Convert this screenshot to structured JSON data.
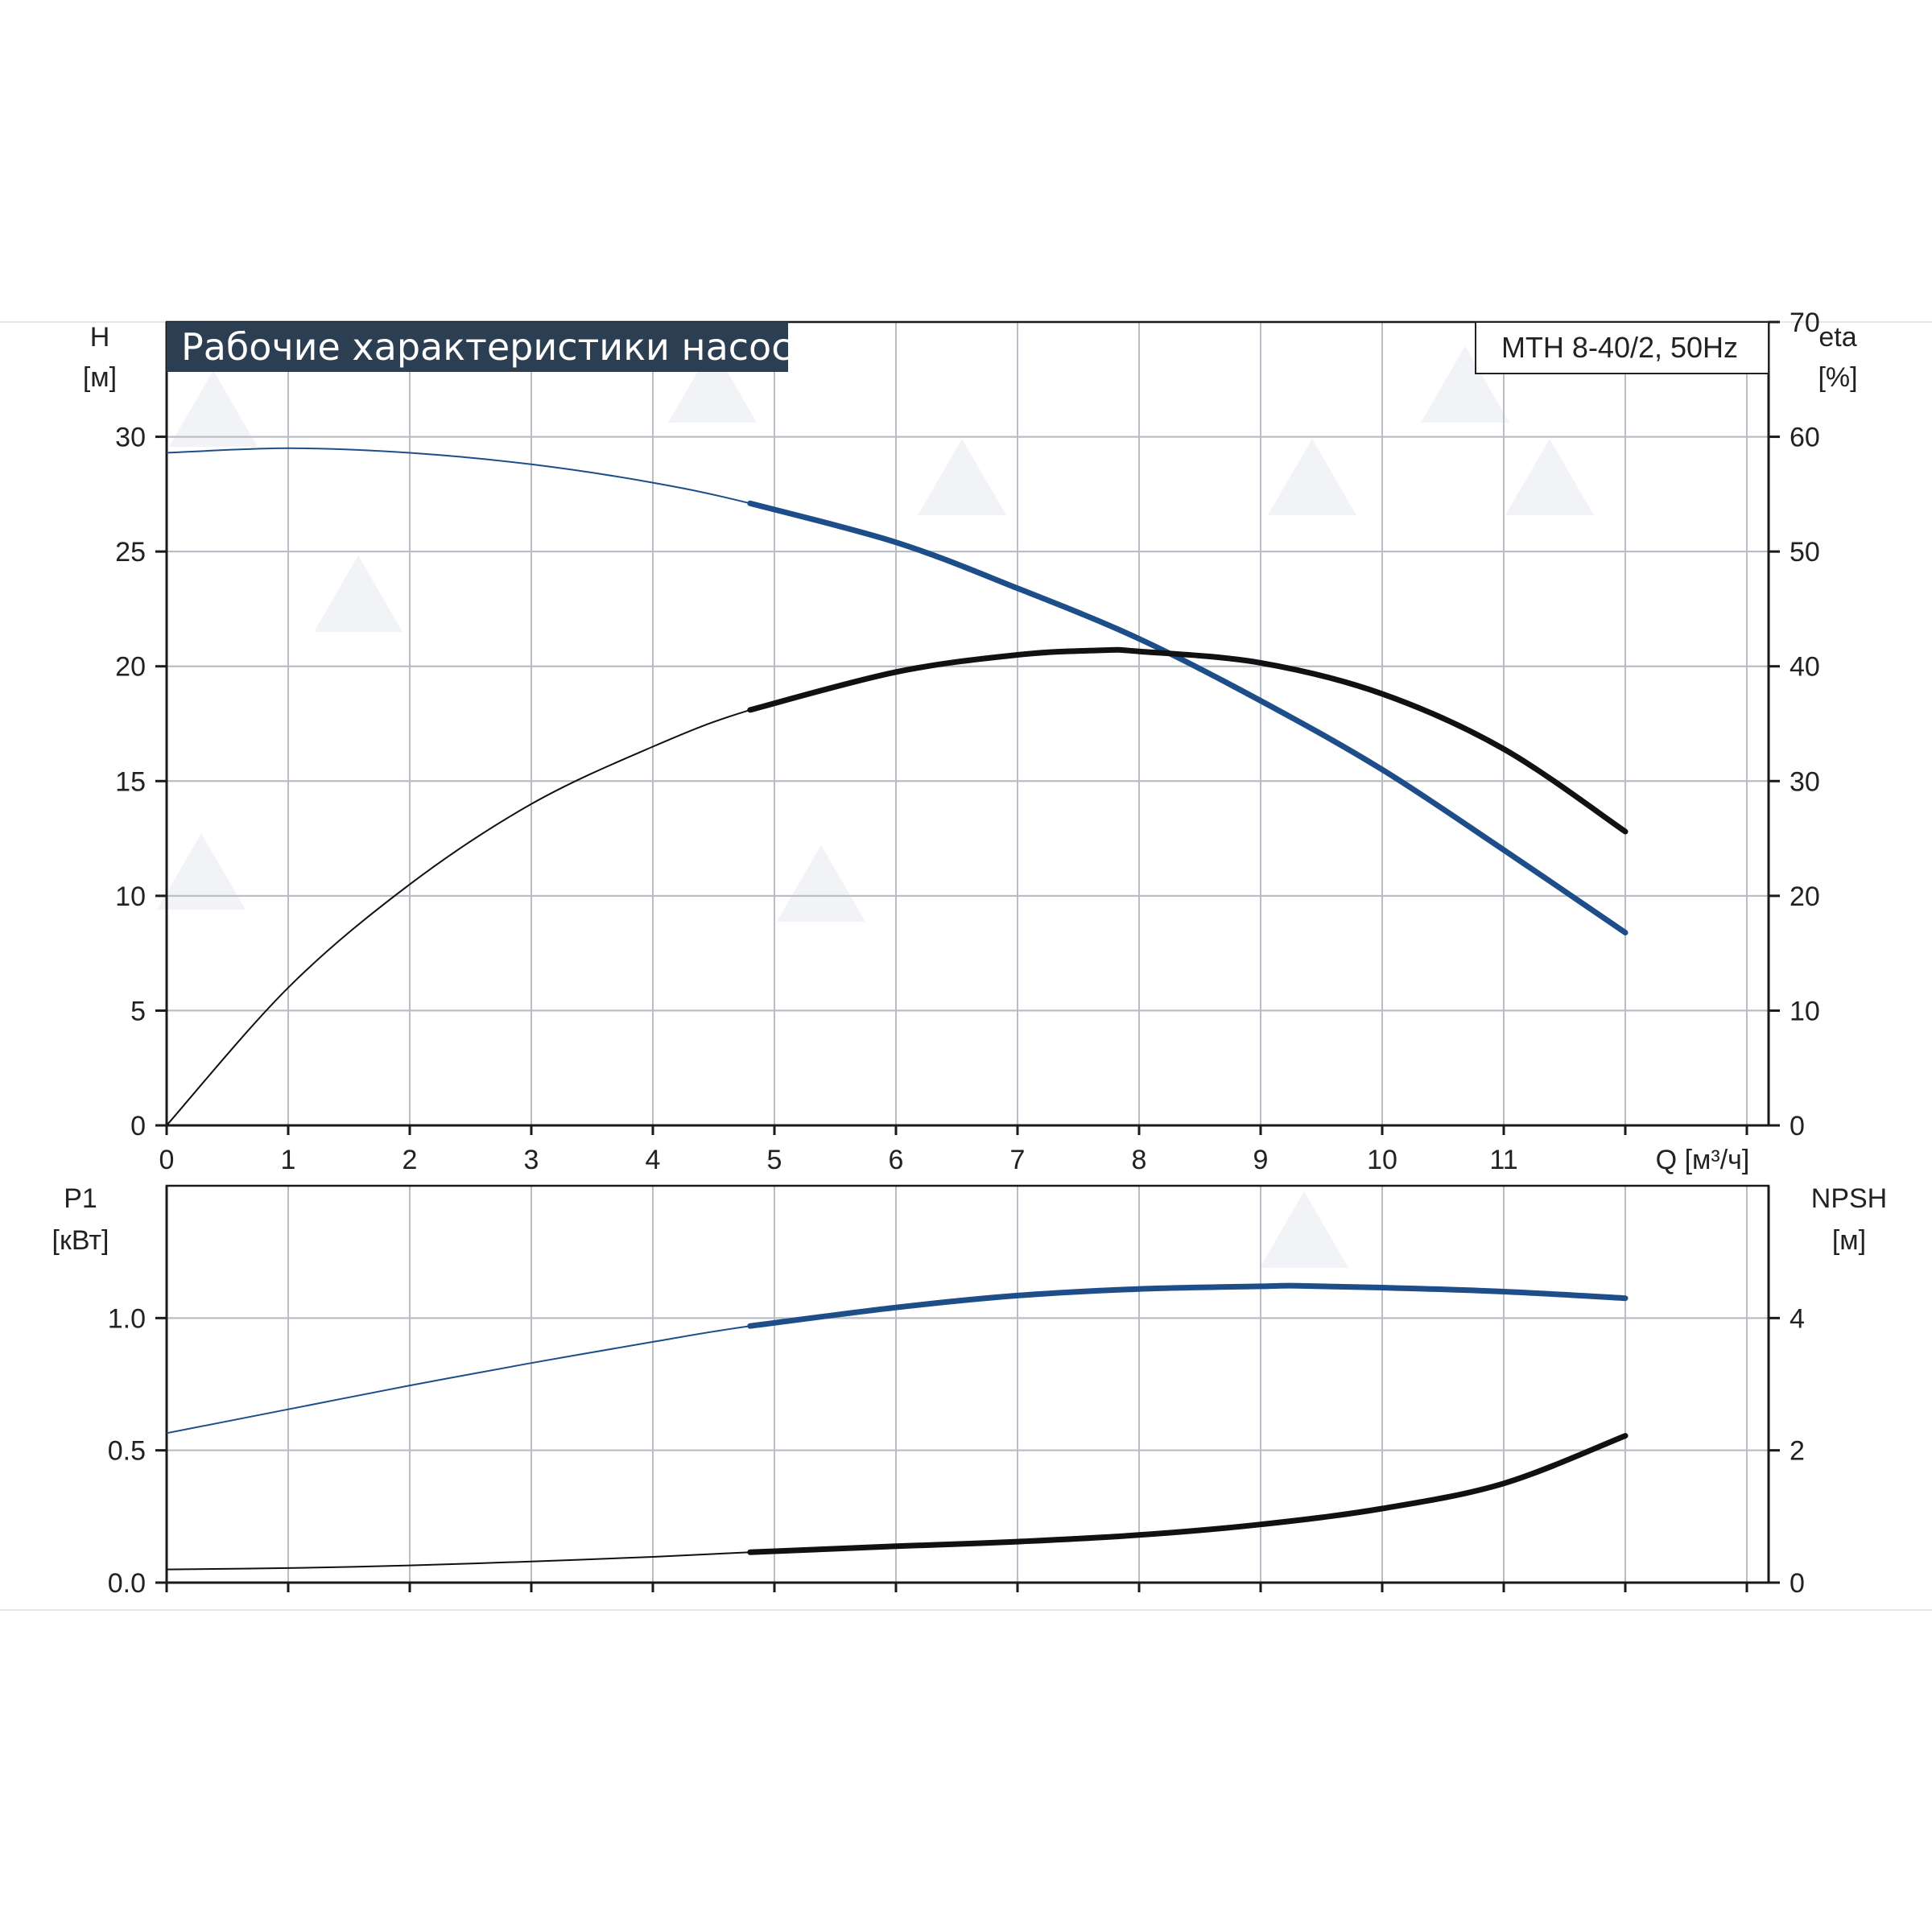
{
  "header": {
    "title": "Рабочие характеристики насоса",
    "model": "MTH 8-40/2, 50Hz"
  },
  "colors": {
    "title_bg": "#2b3e52",
    "curve_blue": "#1d4e89",
    "curve_black": "#111111",
    "grid": "#b9bec6",
    "watermark": "#f1f3f6"
  },
  "chart_data": [
    {
      "type": "line",
      "name": "upper",
      "left_axis": {
        "label": "H",
        "unit": "[м]",
        "ylim": [
          0,
          35
        ],
        "ticks": [
          0,
          5,
          10,
          15,
          20,
          25,
          30
        ],
        "tick_labels": [
          "0",
          "5",
          "10",
          "15",
          "20",
          "25",
          "30"
        ]
      },
      "right_axis": {
        "label": "eta",
        "unit": "[%]",
        "ylim": [
          0,
          70
        ],
        "ticks": [
          0,
          10,
          20,
          30,
          40,
          50,
          60,
          70
        ],
        "tick_labels": [
          "0",
          "10",
          "20",
          "30",
          "40",
          "50",
          "60",
          "70"
        ]
      },
      "x_axis": {
        "label": "Q [м³/ч]",
        "xlim": [
          0,
          13
        ],
        "ticks": [
          0,
          1,
          2,
          3,
          4,
          5,
          6,
          7,
          8,
          9,
          10,
          11,
          12,
          13
        ],
        "tick_labels": [
          "0",
          "1",
          "2",
          "3",
          "4",
          "5",
          "6",
          "7",
          "8",
          "9",
          "10",
          "11",
          "",
          ""
        ]
      },
      "grid": true,
      "series": [
        {
          "axis": "left",
          "color": "#1d4e89",
          "thick_from_x": 4.8,
          "x": [
            0,
            1,
            2,
            3,
            4,
            4.8,
            6,
            7,
            8,
            9,
            10,
            11,
            12
          ],
          "y": [
            29.3,
            29.5,
            29.3,
            28.8,
            28.0,
            27.1,
            25.4,
            23.4,
            21.2,
            18.5,
            15.5,
            12.0,
            8.4
          ]
        },
        {
          "axis": "right",
          "color": "#111111",
          "thick_from_x": 4.8,
          "x": [
            0,
            1,
            2,
            3,
            4,
            4.8,
            6,
            7,
            7.7,
            8,
            9,
            10,
            11,
            12
          ],
          "y": [
            0,
            12,
            21,
            28,
            33,
            36.2,
            39.5,
            41.0,
            41.4,
            41.3,
            40.3,
            37.6,
            32.8,
            25.6
          ]
        }
      ]
    },
    {
      "type": "line",
      "name": "lower",
      "left_axis": {
        "label": "P1",
        "unit": "[кВт]",
        "ylim": [
          0,
          1.5
        ],
        "ticks": [
          0,
          0.5,
          1.0
        ],
        "tick_labels": [
          "0.0",
          "0.5",
          "1.0"
        ]
      },
      "right_axis": {
        "label": "NPSH",
        "unit": "[м]",
        "ylim": [
          0,
          6
        ],
        "ticks": [
          0,
          2,
          4
        ],
        "tick_labels": [
          "0",
          "2",
          "4"
        ]
      },
      "x_axis": {
        "xlim": [
          0,
          13
        ],
        "ticks": [
          0,
          1,
          2,
          3,
          4,
          5,
          6,
          7,
          8,
          9,
          10,
          11,
          12,
          13
        ]
      },
      "grid": true,
      "series": [
        {
          "axis": "left",
          "color": "#1d4e89",
          "thick_from_x": 4.8,
          "x": [
            0,
            1,
            2,
            3,
            4,
            4.8,
            6,
            7,
            8,
            9,
            9.3,
            10,
            11,
            12
          ],
          "y": [
            0.565,
            0.655,
            0.745,
            0.83,
            0.91,
            0.97,
            1.04,
            1.085,
            1.11,
            1.12,
            1.122,
            1.115,
            1.1,
            1.075
          ]
        },
        {
          "axis": "right",
          "color": "#111111",
          "thick_from_x": 4.8,
          "x": [
            0,
            1,
            2,
            3,
            4,
            4.8,
            6,
            7,
            8,
            9,
            10,
            11,
            12
          ],
          "y": [
            0.2,
            0.22,
            0.26,
            0.32,
            0.39,
            0.46,
            0.55,
            0.62,
            0.72,
            0.88,
            1.12,
            1.5,
            2.22
          ]
        }
      ]
    }
  ]
}
